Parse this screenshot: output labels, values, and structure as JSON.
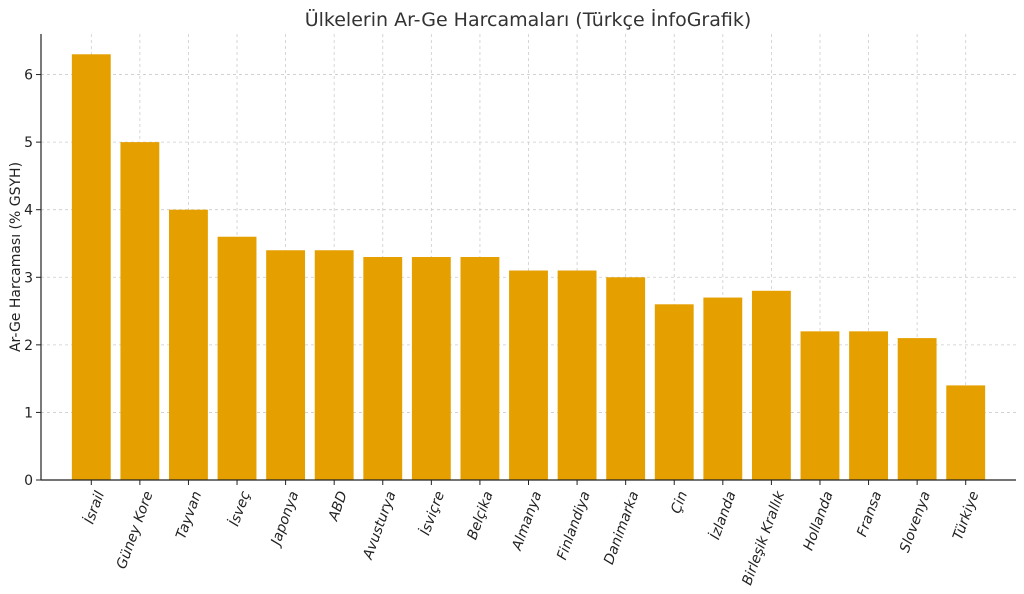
{
  "chart_data": {
    "type": "bar",
    "title": "Ülkelerin Ar-Ge Harcamaları (Türkçe İnfoGrafik)",
    "xlabel": "",
    "ylabel": "Ar-Ge Harcaması (% GSYH)",
    "ylim": [
      0,
      6.6
    ],
    "yticks": [
      0,
      1,
      2,
      3,
      4,
      5,
      6
    ],
    "grid": true,
    "bar_color": "#E5A000",
    "categories": [
      "İsrail",
      "Güney Kore",
      "Tayvan",
      "İsveç",
      "Japonya",
      "ABD",
      "Avusturya",
      "İsviçre",
      "Belçika",
      "Almanya",
      "Finlandiya",
      "Danimarka",
      "Çin",
      "İzlanda",
      "Birleşik Krallık",
      "Hollanda",
      "Fransa",
      "Slovenya",
      "Türkiye"
    ],
    "values": [
      6.3,
      5.0,
      4.0,
      3.6,
      3.4,
      3.4,
      3.3,
      3.3,
      3.3,
      3.1,
      3.1,
      3.0,
      2.6,
      2.7,
      2.8,
      2.2,
      2.2,
      2.1,
      1.4
    ]
  }
}
